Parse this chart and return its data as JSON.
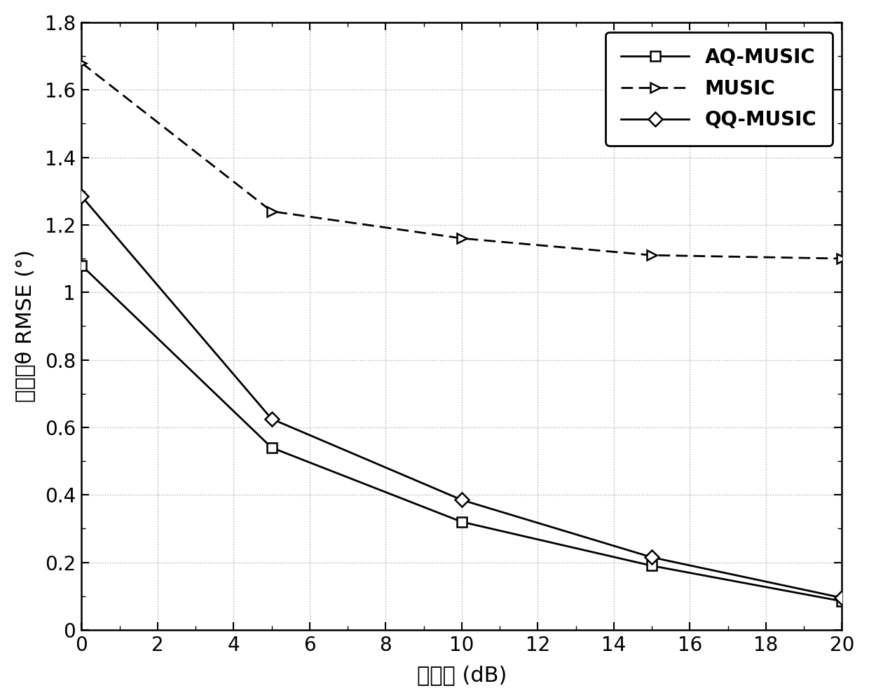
{
  "x": [
    0,
    5,
    10,
    15,
    20
  ],
  "aq_music": [
    1.08,
    0.54,
    0.32,
    0.19,
    0.085
  ],
  "music": [
    1.68,
    1.24,
    1.16,
    1.11,
    1.1
  ],
  "qq_music": [
    1.285,
    0.625,
    0.385,
    0.215,
    0.095
  ],
  "xlabel": "信噪比 (dB)",
  "ylabel": "方位角θ RMSE (°)",
  "xlim": [
    0,
    20
  ],
  "ylim": [
    0,
    1.8
  ],
  "xticks": [
    0,
    2,
    4,
    6,
    8,
    10,
    12,
    14,
    16,
    18,
    20
  ],
  "yticks": [
    0,
    0.2,
    0.4,
    0.6,
    0.8,
    1.0,
    1.2,
    1.4,
    1.6,
    1.8
  ],
  "ytick_labels": [
    "0",
    "0.2",
    "0.4",
    "0.6",
    "0.8",
    "1",
    "1.2",
    "1.4",
    "1.6",
    "1.8"
  ],
  "legend_labels": [
    "AQ-MUSIC",
    "MUSIC",
    "QQ-MUSIC"
  ],
  "line_color": "#000000",
  "background_color": "#ffffff",
  "grid_color": "#999999"
}
